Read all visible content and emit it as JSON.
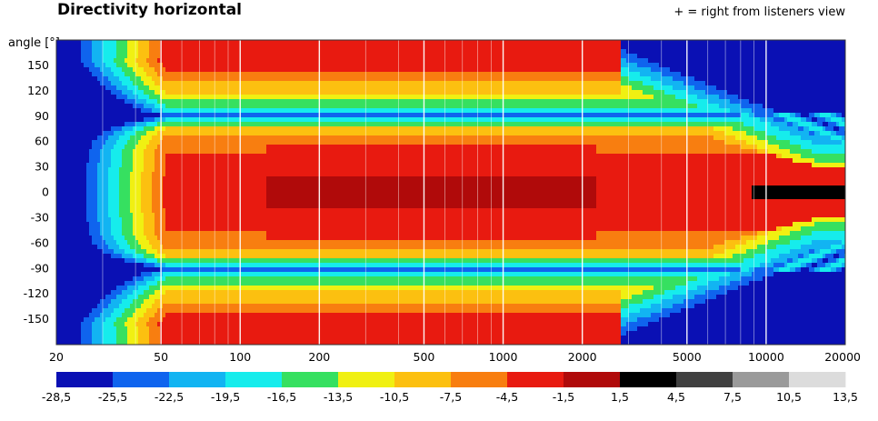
{
  "chart_data": {
    "type": "heatmap",
    "title": "Directivity horizontal",
    "annotation": "+ = right from listeners view",
    "ylabel": "angle [°]",
    "xlabel": "",
    "x_scale": "log",
    "xlim": [
      20,
      20000
    ],
    "ylim": [
      -180,
      180
    ],
    "x_ticks": [
      20,
      50,
      100,
      200,
      500,
      1000,
      2000,
      5000,
      10000,
      20000
    ],
    "y_ticks": [
      150,
      120,
      90,
      60,
      30,
      0,
      -30,
      -60,
      -90,
      -120,
      -150
    ],
    "colorbar": {
      "edges": [
        "-28,5",
        "-25,5",
        "-22,5",
        "-19,5",
        "-16,5",
        "-13,5",
        "-10,5",
        "-7,5",
        "-4,5",
        "-1,5",
        "1,5",
        "4,5",
        "7,5",
        "10,5",
        "13,5"
      ],
      "colors": [
        "#0a10b4",
        "#0f64ee",
        "#12b4f2",
        "#16ecec",
        "#36e060",
        "#f0f012",
        "#fcc010",
        "#f87e10",
        "#e81a10",
        "#b00a0a",
        "#000000",
        "#404040",
        "#9a9a9a",
        "#dcdcdc"
      ]
    }
  }
}
